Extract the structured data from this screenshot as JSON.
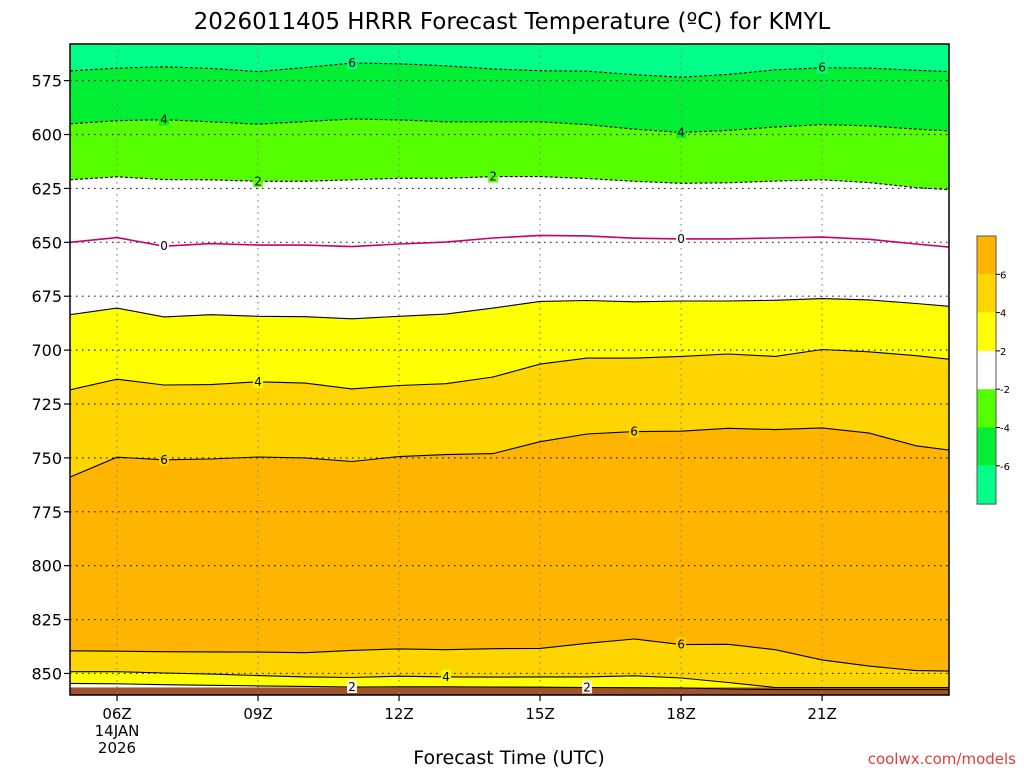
{
  "chart_data": {
    "type": "contour",
    "title": "2026011405 HRRR Forecast Temperature (ºC) for KMYL",
    "xlabel": "Forecast Time (UTC)",
    "ylabel": "",
    "x_unit": "hour (UTC)",
    "xlim": [
      5,
      23.7
    ],
    "y_unit": "hPa",
    "ylim": [
      860,
      558
    ],
    "y_ticks": [
      575,
      600,
      625,
      650,
      675,
      700,
      725,
      750,
      775,
      800,
      825,
      850
    ],
    "x_ticks": [
      {
        "hour": 6,
        "label": "06Z",
        "sub": [
          "14JAN",
          "2026"
        ]
      },
      {
        "hour": 9,
        "label": "09Z"
      },
      {
        "hour": 12,
        "label": "12Z"
      },
      {
        "hour": 15,
        "label": "15Z"
      },
      {
        "hour": 18,
        "label": "18Z"
      },
      {
        "hour": 21,
        "label": "21Z"
      }
    ],
    "grid": true,
    "colorbar": {
      "placement": "right",
      "ticks": [
        "6",
        "4",
        "2",
        "-2",
        "-4",
        "-6"
      ],
      "levels": [
        {
          "range": [
            6,
            8
          ],
          "color": "#ffb500"
        },
        {
          "range": [
            4,
            6
          ],
          "color": "#ffd500"
        },
        {
          "range": [
            2,
            4
          ],
          "color": "#ffff00"
        },
        {
          "range": [
            -2,
            2
          ],
          "color": "#ffffff"
        },
        {
          "range": [
            -4,
            -2
          ],
          "color": "#55ff00"
        },
        {
          "range": [
            -6,
            -4
          ],
          "color": "#00ee33"
        },
        {
          "range": [
            -8,
            -6
          ],
          "color": "#00ff88"
        }
      ]
    },
    "ground_color": "#a0522d",
    "ground_top": 856.5,
    "contours": [
      {
        "level": -6,
        "style": "dashed",
        "color": "#000000",
        "x": [
          5,
          6,
          7,
          8,
          9,
          10,
          11,
          12,
          13,
          14,
          15,
          16,
          17,
          18,
          19,
          20,
          21,
          22,
          23,
          23.7
        ],
        "y": [
          570.5,
          569.2,
          568.6,
          569.3,
          570.8,
          568.9,
          566.8,
          567.2,
          568.1,
          569.6,
          570.4,
          570.6,
          572.2,
          573.4,
          572.1,
          570.0,
          569.0,
          569.2,
          570.2,
          570.8
        ],
        "labels": [
          {
            "x": 11.0,
            "text": "6"
          },
          {
            "x": 21.0,
            "text": "6"
          }
        ]
      },
      {
        "level": -4,
        "style": "dashed",
        "color": "#000000",
        "x": [
          5,
          6,
          7,
          8,
          9,
          10,
          11,
          12,
          13,
          14,
          15,
          16,
          17,
          18,
          19,
          20,
          21,
          22,
          23,
          23.7
        ],
        "y": [
          595.0,
          593.6,
          593.1,
          594.1,
          595.2,
          594.0,
          592.8,
          593.2,
          594.1,
          594.1,
          594.1,
          595.4,
          597.5,
          599.0,
          598.1,
          596.5,
          595.4,
          596.0,
          597.5,
          598.3
        ],
        "labels": [
          {
            "x": 7.0,
            "text": "4"
          },
          {
            "x": 18.0,
            "text": "4"
          }
        ]
      },
      {
        "level": -2,
        "style": "dashed",
        "color": "#000000",
        "x": [
          5,
          6,
          7,
          8,
          9,
          10,
          11,
          12,
          13,
          14,
          15,
          16,
          17,
          18,
          19,
          20,
          21,
          22,
          23,
          23.7
        ],
        "y": [
          621.0,
          619.6,
          620.9,
          621.0,
          621.7,
          621.7,
          621.0,
          620.3,
          620.3,
          619.5,
          619.5,
          620.4,
          621.7,
          622.6,
          622.4,
          621.6,
          621.0,
          622.3,
          624.6,
          625.6
        ],
        "labels": [
          {
            "x": 9.0,
            "text": "2"
          },
          {
            "x": 14.0,
            "text": "2"
          }
        ]
      },
      {
        "level": 0,
        "style": "solid",
        "color": "#c8006e",
        "x": [
          5,
          6,
          7,
          8,
          9,
          10,
          11,
          12,
          13,
          14,
          15,
          16,
          17,
          18,
          19,
          20,
          21,
          22,
          23,
          23.7
        ],
        "y": [
          650.0,
          647.8,
          651.8,
          650.6,
          651.3,
          651.3,
          652.0,
          650.8,
          649.9,
          648.0,
          646.8,
          647.0,
          648.1,
          648.4,
          648.4,
          648.0,
          647.6,
          648.6,
          650.8,
          652.2
        ],
        "labels": [
          {
            "x": 7.0,
            "text": "0"
          },
          {
            "x": 18.0,
            "text": "0"
          }
        ]
      },
      {
        "level": 2,
        "style": "solid",
        "color": "#000000",
        "x": [
          5,
          6,
          7,
          8,
          9,
          10,
          11,
          12,
          13,
          14,
          15,
          16,
          17,
          18,
          19,
          20,
          21,
          22,
          23,
          23.7
        ],
        "y": [
          683.6,
          680.5,
          684.6,
          683.6,
          684.3,
          684.5,
          685.5,
          684.3,
          683.3,
          680.5,
          677.4,
          677.0,
          677.6,
          677.2,
          677.2,
          676.9,
          676.1,
          676.7,
          678.4,
          679.7
        ],
        "labels": []
      },
      {
        "level": 4,
        "style": "solid",
        "color": "#000000",
        "x": [
          5,
          6,
          7,
          8,
          9,
          10,
          11,
          12,
          13,
          14,
          15,
          16,
          17,
          18,
          19,
          20,
          21,
          22,
          23,
          23.7
        ],
        "y": [
          718.4,
          713.5,
          716.2,
          716.0,
          714.7,
          715.3,
          718.0,
          716.4,
          715.6,
          712.5,
          706.5,
          703.7,
          703.7,
          702.9,
          701.8,
          702.9,
          699.7,
          700.8,
          702.6,
          704.2
        ],
        "labels": [
          {
            "x": 9.0,
            "text": "4"
          }
        ]
      },
      {
        "level": 6,
        "style": "solid",
        "color": "#000000",
        "x": [
          5,
          6,
          7,
          8,
          9,
          10,
          11,
          12,
          13,
          14,
          15,
          16,
          17,
          18,
          19,
          20,
          21,
          22,
          23,
          23.7
        ],
        "y": [
          758.9,
          749.7,
          750.9,
          750.5,
          749.6,
          750.0,
          751.7,
          749.4,
          748.5,
          748.0,
          742.5,
          738.9,
          737.8,
          737.6,
          736.3,
          736.9,
          736.1,
          738.5,
          744.4,
          746.4
        ],
        "labels": [
          {
            "x": 7.0,
            "text": "6"
          },
          {
            "x": 17.0,
            "text": "6"
          }
        ]
      },
      {
        "level": 6,
        "style": "solid",
        "color": "#000000",
        "x": [
          5,
          6,
          7,
          8,
          9,
          10,
          11,
          12,
          13,
          14,
          15,
          16,
          17,
          18,
          19,
          20,
          21,
          22,
          23,
          23.7
        ],
        "y": [
          839.5,
          839.7,
          839.9,
          840.0,
          840.1,
          840.4,
          839.3,
          838.6,
          839.0,
          838.5,
          838.4,
          836.0,
          834.0,
          836.6,
          836.5,
          839.0,
          843.7,
          846.6,
          848.7,
          848.9
        ],
        "labels": [
          {
            "x": 18.0,
            "text": "6"
          }
        ]
      },
      {
        "level": 4,
        "style": "solid",
        "color": "#000000",
        "x": [
          5,
          6,
          7,
          8,
          9,
          10,
          11,
          12,
          13,
          14,
          15,
          16,
          17,
          18,
          19,
          20,
          21,
          22,
          23,
          23.7
        ],
        "y": [
          849.2,
          849.2,
          849.8,
          850.3,
          851.0,
          851.6,
          851.9,
          851.3,
          851.6,
          851.7,
          851.6,
          851.6,
          851.1,
          852.1,
          854.2,
          856.5,
          856.5,
          856.5,
          856.5,
          856.5
        ],
        "labels": [
          {
            "x": 13.0,
            "text": "4"
          }
        ]
      },
      {
        "level": 2,
        "style": "solid",
        "color": "#000000",
        "x": [
          5,
          6,
          7,
          8,
          9,
          10,
          11,
          12,
          13,
          14,
          15,
          16,
          17,
          18,
          19,
          20,
          21,
          22,
          23,
          23.7
        ],
        "y": [
          854.6,
          854.8,
          855.2,
          855.5,
          855.8,
          856.0,
          856.3,
          856.2,
          856.2,
          856.3,
          856.4,
          856.5,
          856.6,
          856.7,
          857.2,
          857.5,
          857.5,
          857.5,
          857.5,
          857.5
        ],
        "labels": [
          {
            "x": 11.0,
            "text": "2"
          },
          {
            "x": 16.0,
            "text": "2"
          }
        ]
      }
    ]
  },
  "credit": "coolwx.com/models"
}
